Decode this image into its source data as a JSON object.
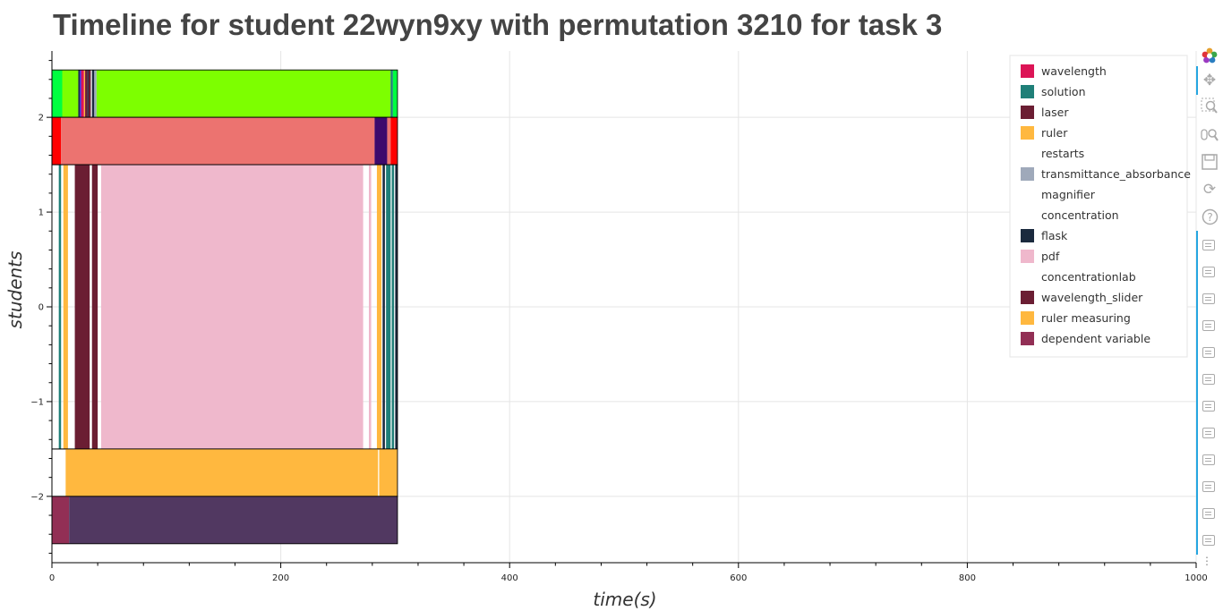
{
  "chart_data": {
    "type": "timeline",
    "title": "Timeline for student 22wyn9xy with permutation 3210 for task 3",
    "xlabel": "time(s)",
    "ylabel": "students",
    "xlim": [
      0,
      1000
    ],
    "ylim": [
      -2.7,
      2.7
    ],
    "xticks": [
      0,
      200,
      400,
      600,
      800,
      1000
    ],
    "yticks": [
      -2,
      -1,
      0,
      1,
      2
    ],
    "grid": true,
    "legend_position": "top-right",
    "legend": [
      {
        "name": "wavelength",
        "color": "#dc1456"
      },
      {
        "name": "solution",
        "color": "#1f7f78"
      },
      {
        "name": "laser",
        "color": "#6b1e33"
      },
      {
        "name": "ruler",
        "color": "#ffb83f"
      },
      {
        "name": "restarts",
        "color": ""
      },
      {
        "name": "transmittance_absorbance",
        "color": "#9fa9ba"
      },
      {
        "name": "magnifier",
        "color": ""
      },
      {
        "name": "concentration",
        "color": ""
      },
      {
        "name": "flask",
        "color": "#1b2a3e"
      },
      {
        "name": "pdf",
        "color": "#efb8cc"
      },
      {
        "name": "concentrationlab",
        "color": ""
      },
      {
        "name": "wavelength_slider",
        "color": "#6b1e33"
      },
      {
        "name": "ruler measuring",
        "color": "#ffb83f"
      },
      {
        "name": "dependent variable",
        "color": "#922f55"
      }
    ],
    "rows": [
      {
        "y0": 2,
        "y1": 2.5,
        "frame_end": 302,
        "segments": [
          {
            "start": 0,
            "end": 9,
            "color": "#00ff40"
          },
          {
            "start": 9,
            "end": 23,
            "color": "#7dff00"
          },
          {
            "start": 23,
            "end": 24.5,
            "color": "#1b2a3e"
          },
          {
            "start": 24.5,
            "end": 25.5,
            "color": "#2020ff"
          },
          {
            "start": 25.5,
            "end": 28,
            "color": "#dc1456"
          },
          {
            "start": 28,
            "end": 29,
            "color": "#ffb83f"
          },
          {
            "start": 29,
            "end": 31,
            "color": "#6b1e33"
          },
          {
            "start": 31,
            "end": 32,
            "color": "#1b2a3e"
          },
          {
            "start": 32,
            "end": 34,
            "color": "#6b1e33"
          },
          {
            "start": 34,
            "end": 35,
            "color": "#ffffff"
          },
          {
            "start": 35,
            "end": 37,
            "color": "#1b2a3e"
          },
          {
            "start": 37,
            "end": 39,
            "color": "#9fa9ba"
          },
          {
            "start": 39,
            "end": 296,
            "color": "#7dff00"
          },
          {
            "start": 296,
            "end": 298,
            "color": "#1f7f78"
          },
          {
            "start": 298,
            "end": 302,
            "color": "#00ff40"
          }
        ]
      },
      {
        "y0": 1.5,
        "y1": 2,
        "frame_end": 302,
        "segments": [
          {
            "start": 0,
            "end": 8,
            "color": "#ff0000"
          },
          {
            "start": 8,
            "end": 282,
            "color": "#ec7370"
          },
          {
            "start": 282,
            "end": 293,
            "color": "#3d0a6c"
          },
          {
            "start": 293,
            "end": 296,
            "color": "#ec7370"
          },
          {
            "start": 296,
            "end": 302,
            "color": "#ff0000"
          }
        ]
      },
      {
        "y0": -1.5,
        "y1": 1.5,
        "frame_end": 302,
        "segments": [
          {
            "start": 6,
            "end": 8,
            "color": "#1f7f78"
          },
          {
            "start": 10,
            "end": 14,
            "color": "#ffb83f"
          },
          {
            "start": 20,
            "end": 33,
            "color": "#6b1e33"
          },
          {
            "start": 35,
            "end": 40,
            "color": "#6b1e33"
          },
          {
            "start": 43,
            "end": 272,
            "color": "#efb8cc"
          },
          {
            "start": 277,
            "end": 279,
            "color": "#efb8cc"
          },
          {
            "start": 284,
            "end": 288,
            "color": "#ffb83f"
          },
          {
            "start": 289,
            "end": 291,
            "color": "#1b2a3e"
          },
          {
            "start": 292,
            "end": 296,
            "color": "#1f7f78"
          },
          {
            "start": 297,
            "end": 299,
            "color": "#1f7f78"
          },
          {
            "start": 300,
            "end": 302,
            "color": "#1b2a3e"
          }
        ]
      },
      {
        "y0": -2,
        "y1": -1.5,
        "frame_end": 302,
        "segments": [
          {
            "start": 12,
            "end": 285,
            "color": "#ffb83f"
          },
          {
            "start": 286,
            "end": 302,
            "color": "#ffb83f"
          }
        ]
      },
      {
        "y0": -2.5,
        "y1": -2,
        "frame_end": 302,
        "segments": [
          {
            "start": 0,
            "end": 15,
            "color": "#922f55"
          },
          {
            "start": 15,
            "end": 302,
            "color": "#513861"
          }
        ]
      }
    ]
  },
  "toolbar": {
    "tools": [
      "bokeh-logo-icon",
      "pan-icon",
      "box-zoom-icon",
      "wheel-zoom-icon",
      "save-icon",
      "reset-icon",
      "help-icon"
    ],
    "more": "⋮"
  }
}
